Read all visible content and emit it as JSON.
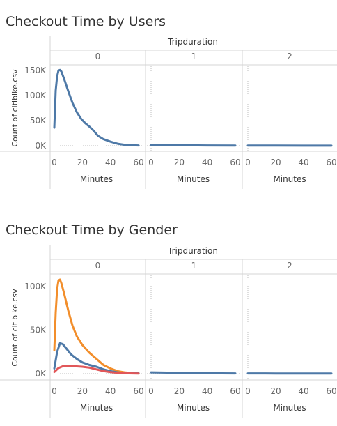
{
  "chart_data": [
    {
      "type": "line",
      "title": "Checkout Time by Users",
      "column_header": "Tripduration",
      "panels": [
        "0",
        "1",
        "2"
      ],
      "xlabel": "Minutes",
      "ylabel": "Count of citibike.csv",
      "x_ticks": [
        "0",
        "20",
        "40",
        "60"
      ],
      "y_ticks": [
        "0K",
        "50K",
        "100K",
        "150K"
      ],
      "xlim": [
        0,
        60
      ],
      "ylim": [
        -8000,
        162000
      ],
      "grid": false,
      "series_colors": [
        "#4e79a7"
      ],
      "series": [
        {
          "panel": "0",
          "values": [
            [
              0,
              36000
            ],
            [
              1,
              110000
            ],
            [
              2,
              138000
            ],
            [
              3,
              150000
            ],
            [
              4,
              151000
            ],
            [
              5,
              148000
            ],
            [
              7,
              133000
            ],
            [
              10,
              108000
            ],
            [
              13,
              85000
            ],
            [
              16,
              67000
            ],
            [
              19,
              54000
            ],
            [
              22,
              45000
            ],
            [
              25,
              38000
            ],
            [
              28,
              30000
            ],
            [
              31,
              20000
            ],
            [
              35,
              13000
            ],
            [
              40,
              8000
            ],
            [
              45,
              4000
            ],
            [
              50,
              2000
            ],
            [
              55,
              1000
            ],
            [
              60,
              500
            ]
          ]
        },
        {
          "panel": "1",
          "values": [
            [
              0,
              1500
            ],
            [
              20,
              1000
            ],
            [
              40,
              500
            ],
            [
              60,
              300
            ]
          ]
        },
        {
          "panel": "2",
          "values": [
            [
              0,
              300
            ],
            [
              20,
              250
            ],
            [
              40,
              200
            ],
            [
              60,
              150
            ]
          ]
        }
      ]
    },
    {
      "type": "line",
      "title": "Checkout Time by Gender",
      "column_header": "Tripduration",
      "panels": [
        "0",
        "1",
        "2"
      ],
      "xlabel": "Minutes",
      "ylabel": "Count of citibike.csv",
      "x_ticks": [
        "0",
        "20",
        "40",
        "60"
      ],
      "y_ticks": [
        "0K",
        "50K",
        "100K"
      ],
      "xlim": [
        0,
        60
      ],
      "ylim": [
        -5000,
        120000
      ],
      "grid": false,
      "series_colors": [
        "#f28e2b",
        "#4e79a7",
        "#e15759"
      ],
      "series": [
        {
          "panel": "0",
          "color": "#f28e2b",
          "values": [
            [
              0,
              27000
            ],
            [
              1,
              70000
            ],
            [
              2,
              97000
            ],
            [
              3,
              107000
            ],
            [
              4,
              108000
            ],
            [
              5,
              104000
            ],
            [
              7,
              92000
            ],
            [
              10,
              72000
            ],
            [
              13,
              55000
            ],
            [
              16,
              43000
            ],
            [
              20,
              33000
            ],
            [
              25,
              24000
            ],
            [
              30,
              17000
            ],
            [
              35,
              10000
            ],
            [
              40,
              6000
            ],
            [
              45,
              3000
            ],
            [
              50,
              1500
            ],
            [
              55,
              800
            ],
            [
              60,
              400
            ]
          ]
        },
        {
          "panel": "0",
          "color": "#4e79a7",
          "values": [
            [
              0,
              6000
            ],
            [
              2,
              25000
            ],
            [
              4,
              35000
            ],
            [
              6,
              34000
            ],
            [
              9,
              28000
            ],
            [
              12,
              22000
            ],
            [
              16,
              17000
            ],
            [
              20,
              13000
            ],
            [
              25,
              10000
            ],
            [
              30,
              8000
            ],
            [
              35,
              5000
            ],
            [
              40,
              3000
            ],
            [
              45,
              1500
            ],
            [
              50,
              800
            ],
            [
              60,
              400
            ]
          ]
        },
        {
          "panel": "0",
          "color": "#e15759",
          "values": [
            [
              0,
              2000
            ],
            [
              3,
              6500
            ],
            [
              6,
              8500
            ],
            [
              10,
              8800
            ],
            [
              15,
              8500
            ],
            [
              20,
              8000
            ],
            [
              25,
              7000
            ],
            [
              30,
              5000
            ],
            [
              35,
              3000
            ],
            [
              40,
              1800
            ],
            [
              45,
              1000
            ],
            [
              50,
              500
            ],
            [
              60,
              200
            ]
          ]
        },
        {
          "panel": "1",
          "color": "#4e79a7",
          "values": [
            [
              0,
              1500
            ],
            [
              20,
              1000
            ],
            [
              40,
              500
            ],
            [
              60,
              300
            ]
          ]
        },
        {
          "panel": "2",
          "color": "#4e79a7",
          "values": [
            [
              0,
              300
            ],
            [
              20,
              250
            ],
            [
              40,
              200
            ],
            [
              60,
              150
            ]
          ]
        }
      ]
    }
  ]
}
